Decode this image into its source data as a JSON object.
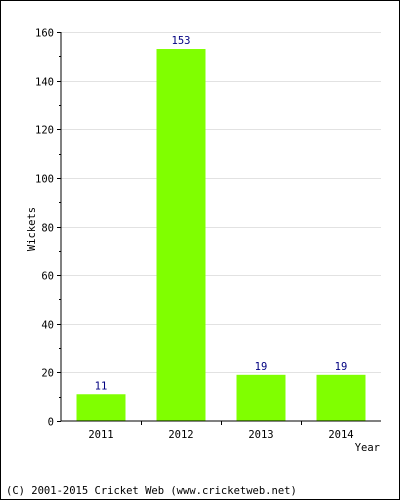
{
  "chart_data": {
    "type": "bar",
    "categories": [
      "2011",
      "2012",
      "2013",
      "2014"
    ],
    "values": [
      11,
      153,
      19,
      19
    ],
    "xlabel": "Year",
    "ylabel": "Wickets",
    "ylim": [
      0,
      160
    ],
    "yticks": [
      "0",
      "20",
      "40",
      "60",
      "80",
      "100",
      "120",
      "140",
      "160"
    ],
    "grid": true,
    "bar_color": "#80ff00",
    "label_color": "#000080"
  },
  "footer": {
    "copyright": "(C) 2001-2015 Cricket Web (www.cricketweb.net)"
  }
}
